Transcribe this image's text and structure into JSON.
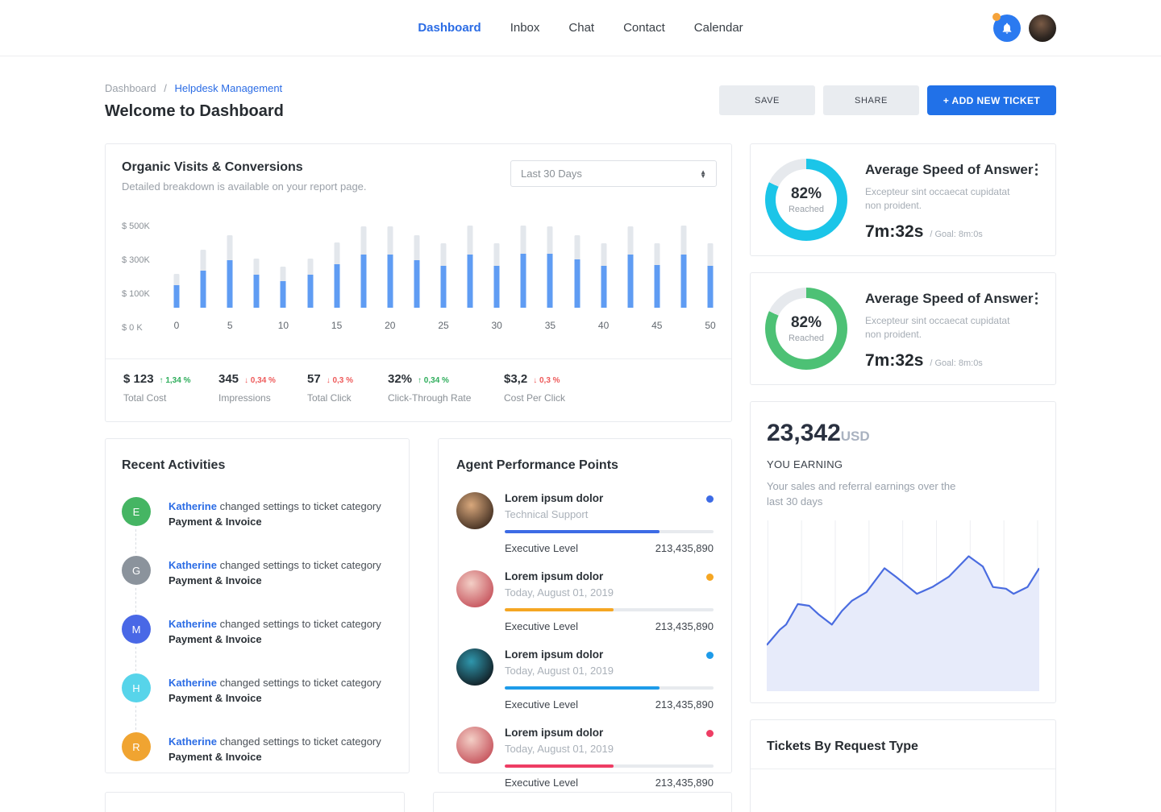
{
  "nav": {
    "items": [
      {
        "label": "Dashboard",
        "active": true
      },
      {
        "label": "Inbox",
        "active": false
      },
      {
        "label": "Chat",
        "active": false
      },
      {
        "label": "Contact",
        "active": false
      },
      {
        "label": "Calendar",
        "active": false
      }
    ]
  },
  "header": {
    "breadcrumb": [
      "Dashboard",
      "Helpdesk Management"
    ],
    "breadcrumb_sep": "/",
    "title": "Welcome to Dashboard",
    "buttons": {
      "save": "SAVE",
      "share": "SHARE",
      "add": "+ ADD NEW TICKET"
    }
  },
  "organic": {
    "title": "Organic Visits & Conversions",
    "subtitle": "Detailed breakdown is available on your report page.",
    "range_select": "Last 30 Days",
    "stats": [
      {
        "value": "$ 123",
        "delta": "1,34 %",
        "dir": "up",
        "label": "Total Cost"
      },
      {
        "value": "345",
        "delta": "0,34 %",
        "dir": "down",
        "label": "Impressions"
      },
      {
        "value": "57",
        "delta": "0,3 %",
        "dir": "down",
        "label": "Total Click"
      },
      {
        "value": "32%",
        "delta": "0,34 %",
        "dir": "up",
        "label": "Click-Through Rate"
      },
      {
        "value": "$3,2",
        "delta": "0,3 %",
        "dir": "down",
        "label": "Cost Per Click"
      }
    ]
  },
  "chart_data": [
    {
      "type": "bar",
      "title": "Organic Visits & Conversions",
      "x": [
        0,
        2.5,
        5,
        7.5,
        10,
        12.5,
        15,
        17.5,
        20,
        22.5,
        25,
        27.5,
        30,
        32.5,
        35,
        37.5,
        40,
        42.5,
        45,
        47.5,
        50
      ],
      "x_tick_labels": [
        "0",
        "5",
        "10",
        "15",
        "20",
        "25",
        "30",
        "35",
        "40",
        "45",
        "50"
      ],
      "y_tick_labels": [
        "$ 500K",
        "$ 300K",
        "$ 100K",
        "$ 0 K"
      ],
      "ylim": [
        0,
        500
      ],
      "unit": "$K",
      "legend": "none",
      "series": [
        {
          "name": "total",
          "color": "#e3e7ec",
          "values": [
            185,
            320,
            400,
            270,
            225,
            270,
            360,
            445,
            445,
            400,
            355,
            450,
            355,
            450,
            445,
            400,
            355,
            445,
            355,
            450,
            355
          ]
        },
        {
          "name": "organic",
          "color": "#5f9cf3",
          "values": [
            125,
            205,
            260,
            180,
            145,
            180,
            240,
            290,
            290,
            260,
            230,
            290,
            230,
            295,
            295,
            265,
            230,
            290,
            235,
            290,
            230
          ]
        }
      ]
    },
    {
      "type": "area",
      "title": "You Earning - last 30 days",
      "x_pct": [
        0,
        4.8,
        7.1,
        11.4,
        15.6,
        19,
        23.9,
        27.6,
        31.3,
        36.6,
        43.2,
        47.4,
        55.1,
        60.8,
        66.8,
        74.1,
        79.3,
        83,
        87.8,
        90.6,
        95.7,
        100
      ],
      "y_pct": [
        27,
        36,
        39,
        51,
        50,
        45,
        39,
        47,
        53,
        58,
        72,
        67,
        57,
        61,
        67,
        79,
        73,
        61,
        60,
        57,
        61,
        72
      ],
      "line_color": "#4a6ce0",
      "fill_color": "#e7ebfa",
      "grid": "vertical",
      "gridline_count": 9,
      "grid_color": "#eceef2"
    }
  ],
  "activities": {
    "title": "Recent Activities",
    "items": [
      {
        "initial": "E",
        "color": "#45b563",
        "user": "Katherine",
        "action": "changed settings to ticket category",
        "target": "Payment & Invoice"
      },
      {
        "initial": "G",
        "color": "#8b939c",
        "user": "Katherine",
        "action": "changed settings to ticket category",
        "target": "Payment & Invoice"
      },
      {
        "initial": "M",
        "color": "#4968e6",
        "user": "Katherine",
        "action": "changed settings to ticket category",
        "target": "Payment & Invoice"
      },
      {
        "initial": "H",
        "color": "#57d4ea",
        "user": "Katherine",
        "action": "changed settings to ticket category",
        "target": "Payment & Invoice"
      },
      {
        "initial": "R",
        "color": "#f0a431",
        "user": "Katherine",
        "action": "changed settings to ticket category",
        "target": "Payment & Invoice"
      }
    ]
  },
  "agents": {
    "title": "Agent Performance Points",
    "items": [
      {
        "name": "Lorem ipsum dolor",
        "subtitle": "Technical Support",
        "dot_color": "#3d6be5",
        "progress_pct": 74,
        "bar_color": "#3d6be5",
        "level_label": "Executive Level",
        "points": "213,435,890",
        "avatar_colors": [
          "#d9a87c",
          "#4a3526"
        ]
      },
      {
        "name": "Lorem ipsum dolor",
        "subtitle": "Today, August 01, 2019",
        "dot_color": "#f5a623",
        "progress_pct": 52,
        "bar_color": "#f5a623",
        "level_label": "Executive Level",
        "points": "213,435,890",
        "avatar_colors": [
          "#f3cfc6",
          "#c95b63"
        ]
      },
      {
        "name": "Lorem ipsum dolor",
        "subtitle": "Today, August 01, 2019",
        "dot_color": "#1e9be9",
        "progress_pct": 74,
        "bar_color": "#1e9be9",
        "level_label": "Executive Level",
        "points": "213,435,890",
        "avatar_colors": [
          "#2f97ad",
          "#13242b"
        ]
      },
      {
        "name": "Lorem ipsum dolor",
        "subtitle": "Today, August 01, 2019",
        "dot_color": "#ee3d64",
        "progress_pct": 52,
        "bar_color": "#ee3d64",
        "level_label": "Executive Level",
        "points": "213,435,890",
        "avatar_colors": [
          "#f3cfc6",
          "#c95b63"
        ]
      }
    ]
  },
  "speed_cards": [
    {
      "title": "Average Speed of Answer",
      "desc": "Excepteur sint occaecat cupidatat non proident.",
      "pct": "82%",
      "pct_value": 82,
      "reached": "Reached",
      "time": "7m:32s",
      "goal": "/ Goal: 8m:0s",
      "color": "#1bc5e8"
    },
    {
      "title": "Average Speed of Answer",
      "desc": "Excepteur sint occaecat cupidatat non proident.",
      "pct": "82%",
      "pct_value": 82,
      "reached": "Reached",
      "time": "7m:32s",
      "goal": "/ Goal: 8m:0s",
      "color": "#4dc175"
    }
  ],
  "earnings": {
    "amount": "23,342",
    "currency": "USD",
    "label": "YOU EARNING",
    "desc": "Your sales and referral earnings over the last 30 days"
  },
  "tickets": {
    "title": "Tickets By Request Type"
  }
}
